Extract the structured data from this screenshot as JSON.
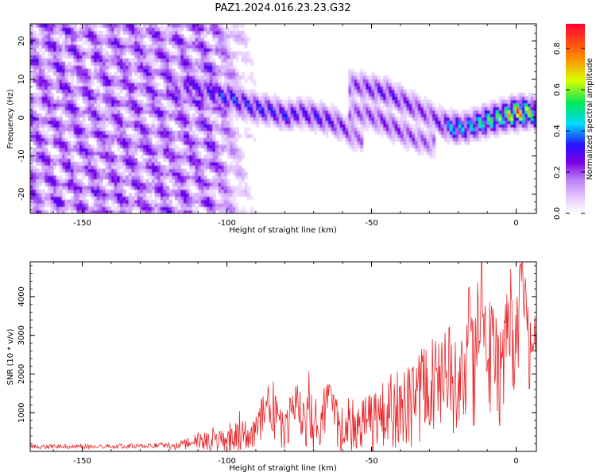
{
  "figure": {
    "title": "PAZ1.2024.016.23.23.G32"
  },
  "colors": {
    "snr_line": "#e8272b",
    "colormap": [
      "#ffffff",
      "#e6ccff",
      "#b97df5",
      "#7a00e6",
      "#2a10ff",
      "#00d8ff",
      "#00e85c",
      "#d8ff00",
      "#ff8c00",
      "#ff0033"
    ]
  },
  "chart_data": [
    {
      "type": "heatmap",
      "title": "",
      "xlabel": "Height of straight line (km)",
      "ylabel": "Frequency (Hz)",
      "xlim": [
        -168,
        7
      ],
      "ylim": [
        -25,
        24.5
      ],
      "xticks": [
        "-150",
        "-100",
        "-50",
        "0"
      ],
      "yticks": [
        "-20",
        "-10",
        "0",
        "10",
        "20"
      ],
      "colorbar": {
        "label": "Normalized spectral amplitude",
        "range": [
          0.0,
          0.92
        ],
        "ticks": [
          "0.0",
          "0.2",
          "0.4",
          "0.6",
          "0.8"
        ]
      },
      "ridges": [
        {
          "name": "main",
          "x": [
            -118,
            -112,
            -106,
            -100,
            -95,
            -90,
            -85,
            -80,
            -75,
            -70,
            -65,
            -60,
            -55
          ],
          "y": [
            7,
            7.5,
            6,
            5,
            3.5,
            2,
            1.5,
            0,
            1,
            0,
            -1,
            -3,
            -6
          ],
          "amplitude": [
            0.22,
            0.28,
            0.32,
            0.38,
            0.34,
            0.35,
            0.33,
            0.34,
            0.3,
            0.32,
            0.3,
            0.26,
            0.2
          ]
        },
        {
          "name": "upper",
          "x": [
            -55,
            -50,
            -45,
            -40,
            -35,
            -30,
            -26,
            -22,
            -18,
            -14,
            -10,
            -5,
            0,
            5,
            7
          ],
          "y": [
            8,
            7,
            6,
            4,
            2,
            0,
            -2,
            -3,
            -3,
            -2,
            -1,
            0,
            1,
            1,
            0
          ],
          "amplitude": [
            0.24,
            0.28,
            0.3,
            0.28,
            0.26,
            0.24,
            0.3,
            0.48,
            0.42,
            0.5,
            0.55,
            0.6,
            0.85,
            0.6,
            0.5
          ]
        },
        {
          "name": "lower",
          "x": [
            -55,
            -50,
            -45,
            -40,
            -35,
            -30
          ],
          "y": [
            1,
            0,
            -2,
            -4,
            -6,
            -7
          ],
          "amplitude": [
            0.22,
            0.24,
            0.26,
            0.24,
            0.22,
            0.2
          ]
        }
      ]
    },
    {
      "type": "line",
      "title": "",
      "xlabel": "Height of straight line (km)",
      "ylabel": "SNR (10 * v/v)",
      "xlim": [
        -168,
        7
      ],
      "ylim": [
        0,
        4900
      ],
      "xticks": [
        "-150",
        "-100",
        "-50",
        "0"
      ],
      "yticks": [
        "1000",
        "2000",
        "3000",
        "4000"
      ],
      "series": [
        {
          "x": [
            -168,
            -160,
            -150,
            -140,
            -130,
            -121,
            -115,
            -110,
            -105,
            -100,
            -95,
            -90,
            -86,
            -80,
            -76,
            -70,
            -65,
            -60,
            -55,
            -50,
            -45,
            -40,
            -36,
            -32,
            -28,
            -24,
            -20,
            -17,
            -14,
            -12,
            -10,
            -8,
            -6,
            -4,
            -2,
            0,
            2,
            4,
            6,
            7
          ],
          "y": [
            120,
            120,
            130,
            130,
            140,
            160,
            260,
            350,
            450,
            550,
            650,
            750,
            1500,
            850,
            1550,
            950,
            1450,
            950,
            1150,
            1050,
            1500,
            1700,
            1900,
            2100,
            2600,
            2600,
            2700,
            3600,
            3000,
            4900,
            2800,
            3300,
            2400,
            3300,
            3800,
            3200,
            4850,
            3700,
            2300,
            4400
          ],
          "envelope": [
            60,
            60,
            60,
            60,
            60,
            70,
            150,
            200,
            300,
            400,
            450,
            500,
            650,
            600,
            750,
            700,
            700,
            700,
            800,
            800,
            900,
            1100,
            1200,
            1300,
            1400,
            1500,
            1500,
            1700,
            1700,
            1800,
            1800,
            1600,
            1500,
            1500,
            1400,
            1300,
            1300,
            1200,
            1200,
            1100
          ]
        }
      ]
    }
  ]
}
